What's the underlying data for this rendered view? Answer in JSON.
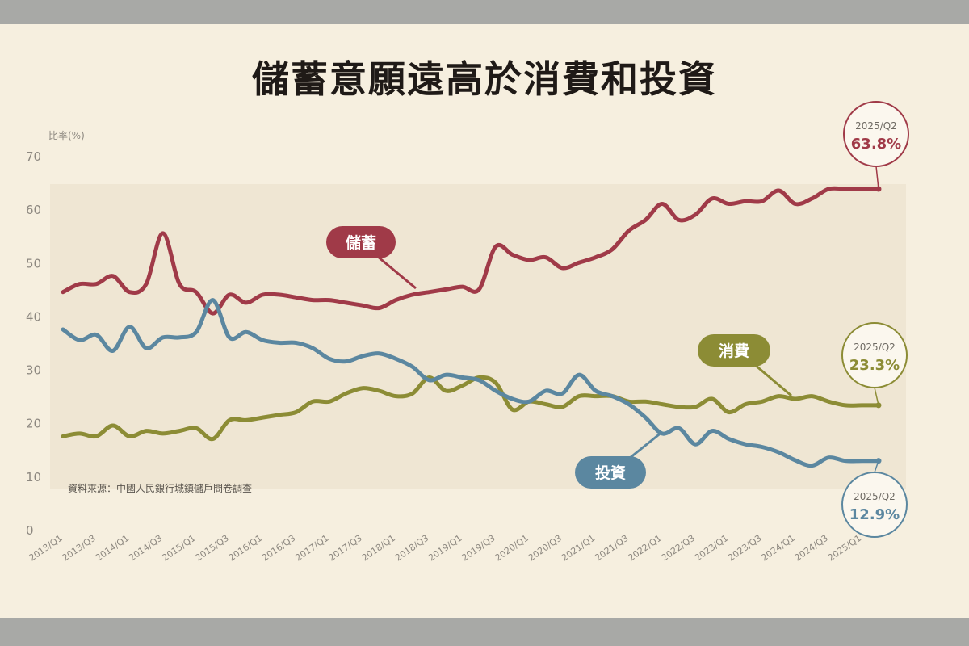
{
  "title": "儲蓄意願遠高於消費和投資",
  "source_note": "資料來源：中國人民銀行城鎮儲戶問卷調查",
  "colors": {
    "saving": "#a03a48",
    "consumption": "#8c8c35",
    "investment": "#5b87a0",
    "background": "#f6efdf",
    "plot_band": "#efe6d3"
  },
  "chart_data": {
    "type": "line",
    "title": "儲蓄意願遠高於消費和投資",
    "ylabel": "比率(%)",
    "xlabel": "",
    "ylim": [
      0,
      70
    ],
    "yticks": [
      0,
      10,
      20,
      30,
      40,
      50,
      60,
      70
    ],
    "x_tick_labels": [
      "2013/Q1",
      "2013/Q3",
      "2014/Q1",
      "2014/Q3",
      "2015/Q1",
      "2015/Q3",
      "2016/Q1",
      "2016/Q3",
      "2017/Q1",
      "2017/Q3",
      "2018/Q1",
      "2018/Q3",
      "2019/Q1",
      "2019/Q3",
      "2020/Q1",
      "2020/Q3",
      "2021/Q1",
      "2021/Q3",
      "2022/Q1",
      "2022/Q3",
      "2023/Q1",
      "2023/Q3",
      "2024/Q1",
      "2024/Q3",
      "2025/Q1"
    ],
    "x": [
      "2013/Q1",
      "2013/Q2",
      "2013/Q3",
      "2013/Q4",
      "2014/Q1",
      "2014/Q2",
      "2014/Q3",
      "2014/Q4",
      "2015/Q1",
      "2015/Q2",
      "2015/Q3",
      "2015/Q4",
      "2016/Q1",
      "2016/Q2",
      "2016/Q3",
      "2016/Q4",
      "2017/Q1",
      "2017/Q2",
      "2017/Q3",
      "2017/Q4",
      "2018/Q1",
      "2018/Q2",
      "2018/Q3",
      "2018/Q4",
      "2019/Q1",
      "2019/Q2",
      "2019/Q3",
      "2019/Q4",
      "2020/Q1",
      "2020/Q2",
      "2020/Q3",
      "2020/Q4",
      "2021/Q1",
      "2021/Q2",
      "2021/Q3",
      "2021/Q4",
      "2022/Q1",
      "2022/Q2",
      "2022/Q3",
      "2022/Q4",
      "2023/Q1",
      "2023/Q2",
      "2023/Q3",
      "2023/Q4",
      "2024/Q1",
      "2024/Q2",
      "2024/Q3",
      "2024/Q4",
      "2025/Q1",
      "2025/Q2"
    ],
    "series": [
      {
        "name": "儲蓄",
        "color": "#a03a48",
        "values": [
          44.5,
          46,
          46,
          47.5,
          44.5,
          46,
          55.5,
          46,
          44.5,
          40.5,
          44,
          42.5,
          44,
          44,
          43.5,
          43,
          43,
          42.5,
          42,
          41.5,
          43,
          44,
          44.5,
          45,
          45.5,
          45,
          53,
          51.5,
          50.5,
          51,
          49,
          50,
          51,
          52.5,
          56,
          58,
          61,
          58,
          59,
          62,
          61,
          61.5,
          61.5,
          63.5,
          61,
          62,
          63.8,
          63.8,
          63.8,
          63.8
        ]
      },
      {
        "name": "消費",
        "color": "#8c8c35",
        "values": [
          17.5,
          18,
          17.5,
          19.5,
          17.5,
          18.5,
          18,
          18.5,
          19,
          17,
          20.5,
          20.5,
          21,
          21.5,
          22,
          24,
          24,
          25.5,
          26.5,
          26,
          25,
          25.5,
          28.5,
          26,
          27,
          28.5,
          27.5,
          22.5,
          24,
          23.5,
          23,
          25,
          25,
          25,
          24,
          24,
          23.5,
          23,
          23,
          24.5,
          22,
          23.5,
          24,
          25,
          24.5,
          25,
          24,
          23.3,
          23.3,
          23.3
        ]
      },
      {
        "name": "投資",
        "color": "#5b87a0",
        "values": [
          37.5,
          35.5,
          36.5,
          33.5,
          38,
          34,
          36,
          36,
          37,
          43,
          36,
          37,
          35.5,
          35,
          35,
          34,
          32,
          31.5,
          32.5,
          33,
          32,
          30.5,
          28,
          29,
          28.5,
          28,
          26,
          24.5,
          24,
          26,
          25.5,
          29,
          26,
          25,
          23.5,
          21,
          18,
          19,
          16,
          18.5,
          17,
          16,
          15.5,
          14.5,
          13,
          12,
          13.5,
          12.9,
          12.9,
          12.9
        ]
      }
    ],
    "series_labels": [
      {
        "series": "儲蓄",
        "text": "儲蓄"
      },
      {
        "series": "消費",
        "text": "消費"
      },
      {
        "series": "投資",
        "text": "投資"
      }
    ],
    "annotations": [
      {
        "series": "儲蓄",
        "date": "2025/Q2",
        "value": "63.8%"
      },
      {
        "series": "消費",
        "date": "2025/Q2",
        "value": "23.3%"
      },
      {
        "series": "投資",
        "date": "2025/Q2",
        "value": "12.9%"
      }
    ],
    "grid": false,
    "legend": "inline labels"
  }
}
